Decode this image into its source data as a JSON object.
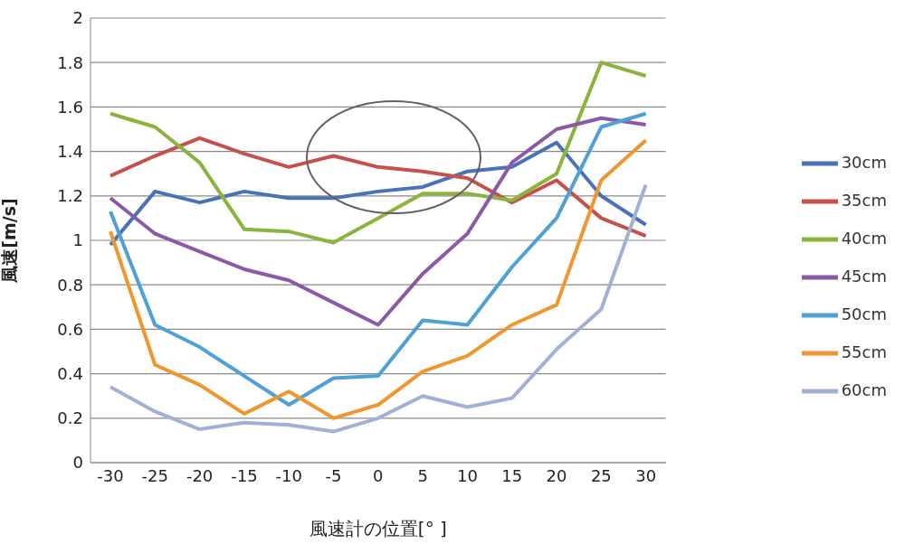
{
  "chart_data": {
    "type": "line",
    "xlabel": "風速計の位置[° ]",
    "ylabel": "風速[m/s]",
    "categories": [
      "-30",
      "-25",
      "-20",
      "-15",
      "-10",
      "-5",
      "0",
      "5",
      "10",
      "15",
      "20",
      "25",
      "30"
    ],
    "ylim": [
      0,
      2
    ],
    "yticks": [
      0,
      {
        "value": 0.2,
        "label": "0.2"
      },
      {
        "value": 0.4,
        "label": "0.4"
      },
      {
        "value": 0.6,
        "label": "0.6"
      },
      {
        "value": 0.8,
        "label": "0.8"
      },
      1,
      {
        "value": 1.2,
        "label": "1.2"
      },
      {
        "value": 1.4,
        "label": "1.4"
      },
      {
        "value": 1.6,
        "label": "1.6"
      },
      {
        "value": 1.8,
        "label": "1.8"
      },
      2
    ],
    "grid": "y",
    "legend": "right",
    "marker": "none",
    "series": [
      {
        "name": "30cm",
        "color": "#4a72b8",
        "values": [
          0.98,
          1.22,
          1.17,
          1.22,
          1.19,
          1.19,
          1.22,
          1.24,
          1.31,
          1.33,
          1.44,
          1.2,
          1.07
        ]
      },
      {
        "name": "35cm",
        "color": "#c8504b",
        "values": [
          1.29,
          1.38,
          1.46,
          1.39,
          1.33,
          1.38,
          1.33,
          1.31,
          1.28,
          1.17,
          1.27,
          1.1,
          1.02
        ]
      },
      {
        "name": "40cm",
        "color": "#8ab43c",
        "values": [
          1.57,
          1.51,
          1.35,
          1.05,
          1.04,
          0.99,
          1.1,
          1.21,
          1.21,
          1.18,
          1.3,
          1.8,
          1.74
        ]
      },
      {
        "name": "45cm",
        "color": "#8a5aa6",
        "values": [
          1.19,
          1.03,
          0.95,
          0.87,
          0.82,
          0.72,
          0.62,
          0.85,
          1.03,
          1.35,
          1.5,
          1.55,
          1.52
        ]
      },
      {
        "name": "50cm",
        "color": "#4fa0d4",
        "values": [
          1.13,
          0.62,
          0.52,
          0.39,
          0.26,
          0.38,
          0.39,
          0.64,
          0.62,
          0.88,
          1.1,
          1.51,
          1.57
        ]
      },
      {
        "name": "55cm",
        "color": "#f0962e",
        "values": [
          1.04,
          0.44,
          0.35,
          0.22,
          0.32,
          0.2,
          0.26,
          0.41,
          0.48,
          0.62,
          0.71,
          1.27,
          1.45
        ]
      },
      {
        "name": "60cm",
        "color": "#a2b0d6",
        "values": [
          0.34,
          0.23,
          0.15,
          0.18,
          0.17,
          0.14,
          0.2,
          0.3,
          0.25,
          0.29,
          0.51,
          0.69,
          1.25
        ]
      }
    ]
  }
}
